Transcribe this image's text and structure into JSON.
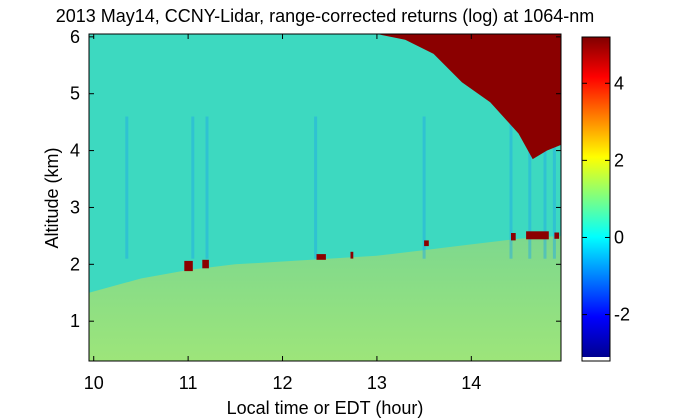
{
  "chart_data": {
    "type": "heatmap",
    "title": "2013 May14, CCNY-Lidar, range-corrected returns (log) at 1064-nm",
    "xlabel": "Local time or EDT (hour)",
    "ylabel": "Altitude (km)",
    "xlim": [
      9.95,
      14.95
    ],
    "ylim": [
      0.3,
      6.05
    ],
    "x_ticks": [
      10,
      11,
      12,
      13,
      14
    ],
    "y_ticks": [
      1,
      2,
      3,
      4,
      5,
      6
    ],
    "colorbar": {
      "range": [
        -3.1,
        5.2
      ],
      "ticks": [
        -2,
        0,
        2,
        4
      ],
      "colormap": "jet"
    },
    "features": {
      "boundary_layer_top_km": [
        {
          "t": 9.95,
          "h": 1.5
        },
        {
          "t": 10.5,
          "h": 1.75
        },
        {
          "t": 11.0,
          "h": 1.9
        },
        {
          "t": 11.5,
          "h": 2.0
        },
        {
          "t": 12.0,
          "h": 2.05
        },
        {
          "t": 12.5,
          "h": 2.1
        },
        {
          "t": 13.0,
          "h": 2.15
        },
        {
          "t": 13.5,
          "h": 2.25
        },
        {
          "t": 14.0,
          "h": 2.35
        },
        {
          "t": 14.5,
          "h": 2.45
        },
        {
          "t": 14.95,
          "h": 2.5
        }
      ],
      "cloud_base_km": [
        {
          "t": 13.0,
          "h": 6.05
        },
        {
          "t": 13.3,
          "h": 5.95
        },
        {
          "t": 13.6,
          "h": 5.7
        },
        {
          "t": 13.9,
          "h": 5.2
        },
        {
          "t": 14.2,
          "h": 4.85
        },
        {
          "t": 14.5,
          "h": 4.3
        },
        {
          "t": 14.65,
          "h": 3.85
        },
        {
          "t": 14.8,
          "h": 4.0
        },
        {
          "t": 14.95,
          "h": 4.1
        }
      ],
      "low_cloud_patches": [
        {
          "t0": 10.96,
          "t1": 11.05,
          "h0": 1.88,
          "h1": 2.06
        },
        {
          "t0": 11.15,
          "t1": 11.22,
          "h0": 1.93,
          "h1": 2.08
        },
        {
          "t0": 12.36,
          "t1": 12.46,
          "h0": 2.08,
          "h1": 2.18
        },
        {
          "t0": 12.72,
          "t1": 12.75,
          "h0": 2.1,
          "h1": 2.22
        },
        {
          "t0": 13.5,
          "t1": 13.55,
          "h0": 2.32,
          "h1": 2.42
        },
        {
          "t0": 14.42,
          "t1": 14.47,
          "h0": 2.42,
          "h1": 2.55
        },
        {
          "t0": 14.58,
          "t1": 14.82,
          "h0": 2.44,
          "h1": 2.58
        },
        {
          "t0": 14.88,
          "t1": 14.93,
          "h0": 2.45,
          "h1": 2.56
        }
      ]
    }
  }
}
